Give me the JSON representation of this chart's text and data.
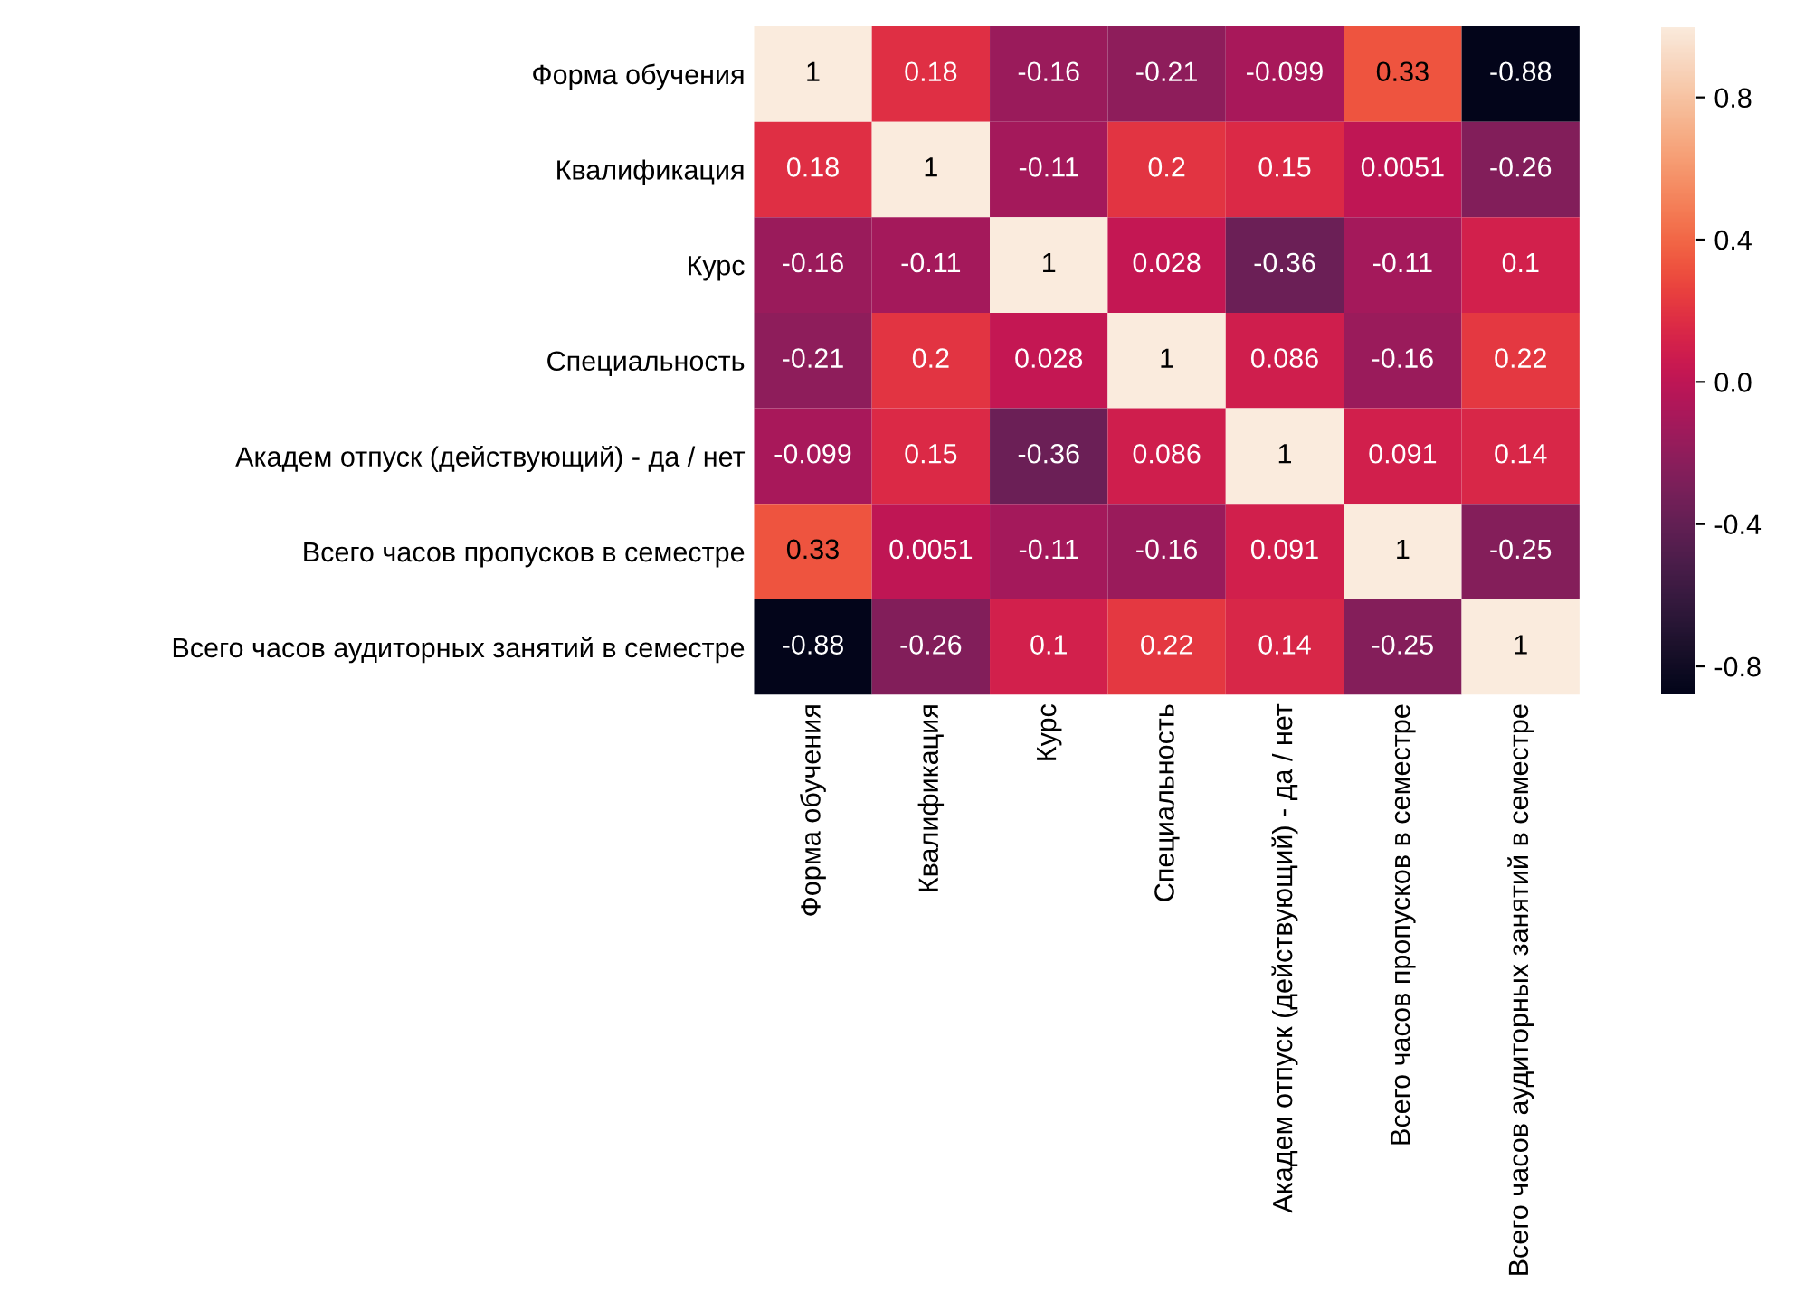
{
  "chart_data": {
    "type": "heatmap",
    "categories": [
      "Форма обучения",
      "Квалификация",
      "Курс",
      "Специальность",
      "Академ отпуск (действующий) - да / нет",
      "Всего часов пропусков в семестре",
      "Всего часов аудиторных занятий в семестре"
    ],
    "y_categories": [
      "Форма обучения",
      "Квалификация",
      "Курс",
      "Специальность",
      "Академ отпуск (действующий) - да / нет",
      "Всего часов пропусков в семестре",
      "Всего часов аудиторных занятий в семестре"
    ],
    "cells": [
      [
        1,
        0.18,
        -0.16,
        -0.21,
        -0.099,
        0.33,
        -0.88
      ],
      [
        0.18,
        1,
        -0.11,
        0.2,
        0.15,
        0.0051,
        -0.26
      ],
      [
        -0.16,
        -0.11,
        1,
        0.028,
        -0.36,
        -0.11,
        0.1
      ],
      [
        -0.21,
        0.2,
        0.028,
        1,
        0.086,
        -0.16,
        0.22
      ],
      [
        -0.099,
        0.15,
        -0.36,
        0.086,
        1,
        0.091,
        0.14
      ],
      [
        0.33,
        0.0051,
        -0.11,
        -0.16,
        0.091,
        1,
        -0.25
      ],
      [
        -0.88,
        -0.26,
        0.1,
        0.22,
        0.14,
        -0.25,
        1
      ]
    ],
    "data_labels": true,
    "clim": [
      -0.88,
      1
    ],
    "cticks": [
      {
        "value": -0.8,
        "label": "-0.8"
      },
      {
        "value": -0.4,
        "label": "-0.4"
      },
      {
        "value": 0.0,
        "label": "0.0"
      },
      {
        "value": 0.4,
        "label": "0.4"
      },
      {
        "value": 0.8,
        "label": "0.8"
      }
    ]
  }
}
